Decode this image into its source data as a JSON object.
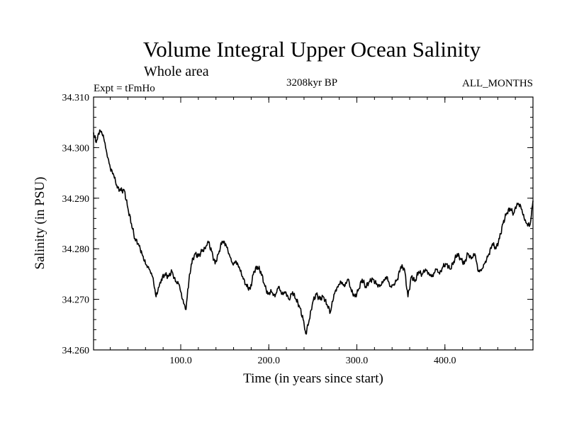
{
  "chart_data": {
    "type": "line",
    "title": "Volume Integral Upper Ocean Salinity",
    "subtitle": "Whole area",
    "expt_label": "Expt = tFmHo",
    "period_label": "3208kyr BP",
    "months_label": "ALL_MONTHS",
    "xlabel": "Time (in years since start)",
    "ylabel": "Salinity (in PSU)",
    "xlim": [
      1,
      500
    ],
    "ylim": [
      34.26,
      34.31
    ],
    "x_ticks": [
      {
        "value": 100,
        "label": "100.0"
      },
      {
        "value": 200,
        "label": "200.0"
      },
      {
        "value": 300,
        "label": "300.0"
      },
      {
        "value": 400,
        "label": "400.0"
      }
    ],
    "y_ticks": [
      {
        "value": 34.26,
        "label": "34.260"
      },
      {
        "value": 34.27,
        "label": "34.270"
      },
      {
        "value": 34.28,
        "label": "34.280"
      },
      {
        "value": 34.29,
        "label": "34.290"
      },
      {
        "value": 34.3,
        "label": "34.300"
      },
      {
        "value": 34.31,
        "label": "34.310"
      }
    ],
    "series": [
      {
        "name": "Salinity",
        "x": [
          1,
          4,
          8,
          12,
          16,
          20,
          24,
          28,
          32,
          36,
          40,
          44,
          48,
          52,
          56,
          60,
          64,
          68,
          72,
          76,
          78,
          82,
          86,
          90,
          94,
          98,
          102,
          106,
          108,
          112,
          116,
          120,
          124,
          128,
          131,
          135,
          139,
          143,
          147,
          151,
          155,
          159,
          163,
          167,
          171,
          175,
          179,
          183,
          187,
          191,
          195,
          199,
          203,
          207,
          211,
          215,
          219,
          223,
          227,
          231,
          235,
          239,
          242,
          246,
          250,
          254,
          258,
          262,
          266,
          270,
          274,
          278,
          282,
          286,
          290,
          294,
          298,
          302,
          306,
          310,
          314,
          318,
          322,
          326,
          330,
          334,
          338,
          342,
          346,
          350,
          354,
          358,
          362,
          366,
          370,
          374,
          378,
          382,
          386,
          390,
          394,
          398,
          402,
          406,
          410,
          414,
          418,
          422,
          426,
          430,
          434,
          438,
          442,
          446,
          450,
          454,
          458,
          462,
          466,
          470,
          474,
          478,
          482,
          486,
          490,
          494,
          497,
          500
        ],
        "values": [
          34.303,
          34.301,
          34.3035,
          34.3025,
          34.299,
          34.296,
          34.2945,
          34.292,
          34.2915,
          34.2915,
          34.288,
          34.285,
          34.282,
          34.281,
          34.279,
          34.277,
          34.276,
          34.2745,
          34.2705,
          34.273,
          34.274,
          34.275,
          34.2745,
          34.2755,
          34.2735,
          34.273,
          34.27,
          34.268,
          34.272,
          34.277,
          34.279,
          34.2785,
          34.2795,
          34.28,
          34.2815,
          34.2795,
          34.277,
          34.279,
          34.2815,
          34.281,
          34.279,
          34.277,
          34.2775,
          34.276,
          34.274,
          34.2725,
          34.272,
          34.2755,
          34.2765,
          34.2755,
          34.273,
          34.271,
          34.2715,
          34.2705,
          34.2725,
          34.271,
          34.2715,
          34.27,
          34.2715,
          34.27,
          34.2685,
          34.266,
          34.2632,
          34.266,
          34.2695,
          34.271,
          34.27,
          34.2705,
          34.269,
          34.2675,
          34.271,
          34.2725,
          34.2735,
          34.2725,
          34.274,
          34.2715,
          34.2705,
          34.272,
          34.274,
          34.2725,
          34.2735,
          34.274,
          34.273,
          34.2725,
          34.2735,
          34.2745,
          34.2725,
          34.273,
          34.274,
          34.2765,
          34.276,
          34.2705,
          34.2745,
          34.2735,
          34.2755,
          34.275,
          34.276,
          34.275,
          34.2745,
          34.276,
          34.275,
          34.2765,
          34.277,
          34.276,
          34.2775,
          34.279,
          34.278,
          34.277,
          34.279,
          34.278,
          34.279,
          34.2755,
          34.276,
          34.2775,
          34.279,
          34.281,
          34.28,
          34.282,
          34.285,
          34.287,
          34.288,
          34.287,
          34.289,
          34.2885,
          34.286,
          34.2845,
          34.285,
          34.2895
        ]
      }
    ]
  }
}
